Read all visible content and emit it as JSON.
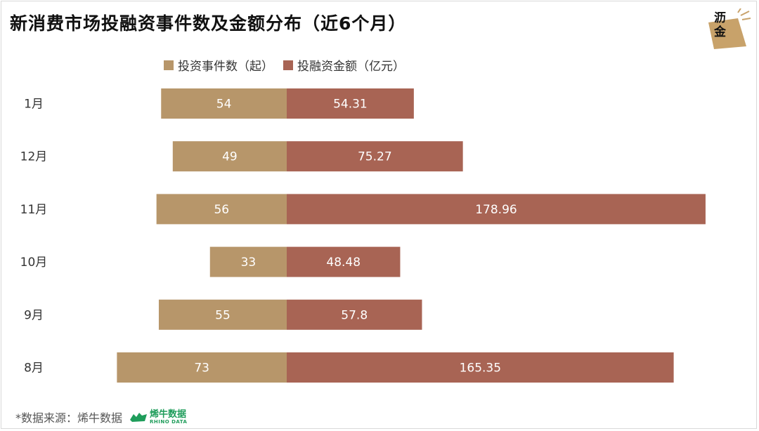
{
  "title": "新消费市场投融资事件数及金额分布（近6个月）",
  "logo": {
    "line1": "沥",
    "line2": "金"
  },
  "legend": {
    "count_label": "投资事件数（起）",
    "amount_label": "投融资金额（亿元）"
  },
  "colors": {
    "count": "#b7966a",
    "amount": "#a86454"
  },
  "source": {
    "text": "*数据来源：烯牛数据",
    "brand_cn": "烯牛数据",
    "brand_en": "RHINO DATA",
    "brand_color": "#1f9d5b"
  },
  "chart_data": {
    "type": "bar",
    "orientation": "horizontal-diverging",
    "categories": [
      "1月",
      "12月",
      "11月",
      "10月",
      "9月",
      "8月"
    ],
    "series": [
      {
        "name": "投资事件数（起）",
        "values": [
          54,
          49,
          56,
          33,
          55,
          73
        ],
        "labels": [
          "54",
          "49",
          "56",
          "33",
          "55",
          "73"
        ]
      },
      {
        "name": "投融资金额（亿元）",
        "values": [
          54.31,
          75.27,
          178.96,
          48.48,
          57.8,
          165.35
        ],
        "labels": [
          "54.31",
          "75.27",
          "178.96",
          "48.48",
          "57.8",
          "165.35"
        ]
      }
    ],
    "legend_position": "top",
    "grid": false
  }
}
